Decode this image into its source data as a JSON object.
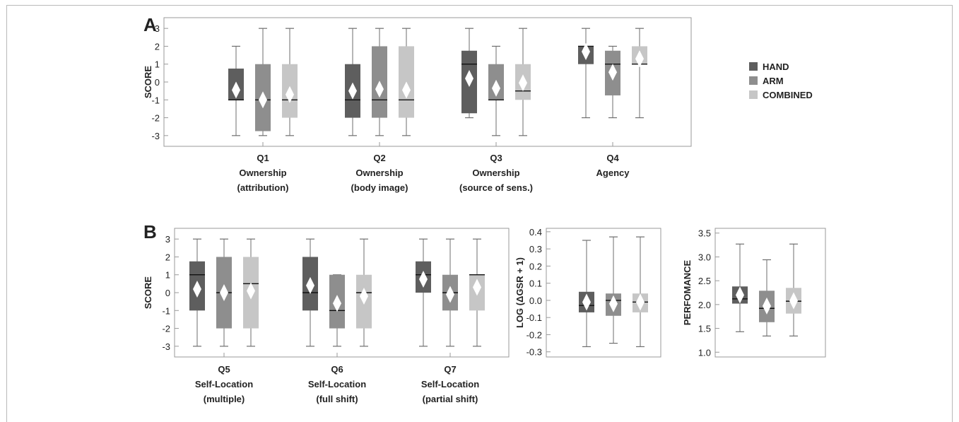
{
  "colors": {
    "hand": "#5e5e5e",
    "arm": "#8e8e8e",
    "combined": "#c6c6c6",
    "whisker": "#6e6e6e",
    "median": "#111111",
    "mean_marker": "#ffffff",
    "axis": "#999999"
  },
  "legend": {
    "placement": "right",
    "items": [
      {
        "label": "HAND",
        "color": "#5e5e5e"
      },
      {
        "label": "ARM",
        "color": "#8e8e8e"
      },
      {
        "label": "COMBINED",
        "color": "#c6c6c6"
      }
    ]
  },
  "chart_data": [
    {
      "type": "box",
      "panel_label": "A",
      "ylabel": "SCORE",
      "ylim": [
        -3.6,
        3.6
      ],
      "yticks": [
        "-3",
        "-2",
        "-1",
        "0",
        "1",
        "2",
        "3"
      ],
      "groups": [
        {
          "label_lines": [
            "Q1",
            "Ownership",
            "(attribution)"
          ],
          "boxes": [
            {
              "series": "HAND",
              "min": -3,
              "q1": -1,
              "median": -1,
              "q3": 0.75,
              "max": 2,
              "mean": -0.45
            },
            {
              "series": "ARM",
              "min": -3,
              "q1": -2.75,
              "median": -1,
              "q3": 1,
              "max": 3,
              "mean": -1.0
            },
            {
              "series": "COMBINED",
              "min": -3,
              "q1": -2,
              "median": -1,
              "q3": 1,
              "max": 3,
              "mean": -0.7
            }
          ]
        },
        {
          "label_lines": [
            "Q2",
            "Ownership",
            "(body image)"
          ],
          "boxes": [
            {
              "series": "HAND",
              "min": -3,
              "q1": -2,
              "median": -1,
              "q3": 1,
              "max": 3,
              "mean": -0.5
            },
            {
              "series": "ARM",
              "min": -3,
              "q1": -2,
              "median": -1,
              "q3": 2,
              "max": 3,
              "mean": -0.4
            },
            {
              "series": "COMBINED",
              "min": -3,
              "q1": -2,
              "median": -1,
              "q3": 2,
              "max": 3,
              "mean": -0.45
            }
          ]
        },
        {
          "label_lines": [
            "Q3",
            "Ownership",
            "(source of sens.)"
          ],
          "boxes": [
            {
              "series": "HAND",
              "min": -2,
              "q1": -1.75,
              "median": 1,
              "q3": 1.75,
              "max": 3,
              "mean": 0.2
            },
            {
              "series": "ARM",
              "min": -3,
              "q1": -1,
              "median": -1,
              "q3": 1,
              "max": 2,
              "mean": -0.35
            },
            {
              "series": "COMBINED",
              "min": -3,
              "q1": -1,
              "median": -0.5,
              "q3": 1,
              "max": 3,
              "mean": -0.05
            }
          ]
        },
        {
          "label_lines": [
            "Q4",
            "Agency"
          ],
          "boxes": [
            {
              "series": "HAND",
              "min": -2,
              "q1": 1,
              "median": 2,
              "q3": 2,
              "max": 3,
              "mean": 1.7
            },
            {
              "series": "ARM",
              "min": -2,
              "q1": -0.75,
              "median": 1,
              "q3": 1.75,
              "max": 2,
              "mean": 0.55
            },
            {
              "series": "COMBINED",
              "min": -2,
              "q1": 1,
              "median": 1,
              "q3": 2,
              "max": 3,
              "mean": 1.3
            }
          ]
        }
      ]
    },
    {
      "type": "box",
      "panel_label": "B",
      "ylabel": "SCORE",
      "ylim": [
        -3.6,
        3.6
      ],
      "yticks": [
        "-3",
        "-2",
        "-1",
        "0",
        "1",
        "2",
        "3"
      ],
      "groups": [
        {
          "label_lines": [
            "Q5",
            "Self-Location",
            "(multiple)"
          ],
          "boxes": [
            {
              "series": "HAND",
              "min": -3,
              "q1": -1,
              "median": 1,
              "q3": 1.75,
              "max": 3,
              "mean": 0.2
            },
            {
              "series": "ARM",
              "min": -3,
              "q1": -2,
              "median": 0,
              "q3": 2,
              "max": 3,
              "mean": 0.0
            },
            {
              "series": "COMBINED",
              "min": -3,
              "q1": -2,
              "median": 0.5,
              "q3": 2,
              "max": 3,
              "mean": 0.1
            }
          ]
        },
        {
          "label_lines": [
            "Q6",
            "Self-Location",
            "(full shift)"
          ],
          "boxes": [
            {
              "series": "HAND",
              "min": -3,
              "q1": -1,
              "median": 0,
              "q3": 2,
              "max": 3,
              "mean": 0.4
            },
            {
              "series": "ARM",
              "min": -3,
              "q1": -2,
              "median": -1,
              "q3": 1,
              "max": 1,
              "mean": -0.6
            },
            {
              "series": "COMBINED",
              "min": -3,
              "q1": -2,
              "median": 0,
              "q3": 1,
              "max": 3,
              "mean": -0.2
            }
          ]
        },
        {
          "label_lines": [
            "Q7",
            "Self-Location",
            "(partial shift)"
          ],
          "boxes": [
            {
              "series": "HAND",
              "min": -3,
              "q1": 0,
              "median": 1,
              "q3": 1.75,
              "max": 3,
              "mean": 0.75
            },
            {
              "series": "ARM",
              "min": -3,
              "q1": -1,
              "median": 0,
              "q3": 1,
              "max": 3,
              "mean": -0.1
            },
            {
              "series": "COMBINED",
              "min": -3,
              "q1": -1,
              "median": 1,
              "q3": 1,
              "max": 3,
              "mean": 0.3
            }
          ]
        }
      ]
    },
    {
      "type": "box",
      "panel_label": "",
      "ylabel": "LOG (ΔGSR + 1)",
      "ylim": [
        -0.33,
        0.42
      ],
      "yticks": [
        "-0.3",
        "-0.2",
        "-0.1",
        "0.0",
        "0.1",
        "0.2",
        "0.3",
        "0.4"
      ],
      "groups": [
        {
          "label_lines": [],
          "boxes": [
            {
              "series": "HAND",
              "min": -0.27,
              "q1": -0.07,
              "median": -0.03,
              "q3": 0.05,
              "max": 0.35,
              "mean": -0.01
            },
            {
              "series": "ARM",
              "min": -0.25,
              "q1": -0.09,
              "median": 0.0,
              "q3": 0.04,
              "max": 0.37,
              "mean": -0.02
            },
            {
              "series": "COMBINED",
              "min": -0.27,
              "q1": -0.07,
              "median": -0.01,
              "q3": 0.04,
              "max": 0.37,
              "mean": -0.01
            }
          ]
        }
      ]
    },
    {
      "type": "box",
      "panel_label": "",
      "ylabel": "PERFOMANCE",
      "ylim": [
        0.9,
        3.6
      ],
      "yticks": [
        "1.0",
        "1.5",
        "2.0",
        "2.5",
        "3.0",
        "3.5"
      ],
      "groups": [
        {
          "label_lines": [],
          "boxes": [
            {
              "series": "HAND",
              "min": 1.43,
              "q1": 2.02,
              "median": 2.12,
              "q3": 2.38,
              "max": 3.27,
              "mean": 2.2
            },
            {
              "series": "ARM",
              "min": 1.34,
              "q1": 1.63,
              "median": 1.92,
              "q3": 2.29,
              "max": 2.94,
              "mean": 1.97
            },
            {
              "series": "COMBINED",
              "min": 1.34,
              "q1": 1.81,
              "median": 2.07,
              "q3": 2.35,
              "max": 3.27,
              "mean": 2.08
            }
          ]
        }
      ]
    }
  ]
}
